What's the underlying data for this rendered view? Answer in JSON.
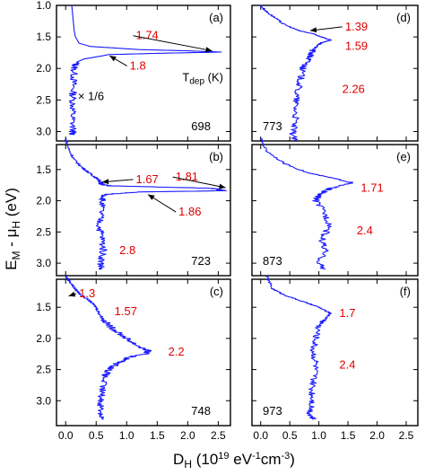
{
  "chart_data": {
    "type": "line",
    "xlabel": "D",
    "xlabel_sub": "H",
    "xlabel_units": " (10",
    "xlabel_exp1": "19",
    "xlabel_mid": " eV",
    "xlabel_exp2": "-1",
    "xlabel_mid2": "cm",
    "xlabel_exp3": "-3",
    "xlabel_end": ")",
    "ylabel_main": "E",
    "ylabel_sub1": "M",
    "ylabel_mid": " - μ",
    "ylabel_sub2": "H",
    "ylabel_units": " (eV)",
    "xlim": [
      -0.15,
      2.7
    ],
    "ylim": [
      1.0,
      3.4
    ],
    "ylim_inverted": true,
    "xticks": [
      "0.0",
      "0.5",
      "1.0",
      "1.5",
      "2.0",
      "2.5"
    ],
    "xtick_values": [
      0,
      0.5,
      1.0,
      1.5,
      2.0,
      2.5
    ],
    "yticks_top": [
      "1.0",
      "1.5",
      "2.0",
      "2.5",
      "3.0"
    ],
    "yticks_top_values": [
      1.0,
      1.5,
      2.0,
      2.5,
      3.0
    ],
    "yticks": [
      "1.5",
      "2.0",
      "2.5",
      "3.0"
    ],
    "yticks_values": [
      1.5,
      2.0,
      2.5,
      3.0
    ],
    "line_color": "#1a1aff",
    "annotation_color": "#e00000",
    "panels": [
      {
        "id": "a",
        "label": "(a)",
        "temp": "698",
        "temp_header": "T",
        "temp_header_sub": "dep",
        "temp_header_unit": " (K)",
        "scale_note": "× 1/6",
        "series": {
          "y": [
            1.0,
            1.1,
            1.2,
            1.3,
            1.4,
            1.5,
            1.6,
            1.65,
            1.7,
            1.72,
            1.74,
            1.76,
            1.78,
            1.8,
            1.85,
            1.9,
            2.0,
            2.2,
            2.4,
            2.6,
            2.8,
            3.0,
            3.05
          ],
          "x": [
            0.1,
            0.11,
            0.12,
            0.13,
            0.14,
            0.16,
            0.22,
            0.4,
            1.2,
            2.0,
            2.55,
            1.5,
            0.7,
            0.6,
            0.3,
            0.18,
            0.14,
            0.13,
            0.12,
            0.12,
            0.11,
            0.12,
            0.12
          ]
        },
        "annotations": [
          {
            "text": "1.74",
            "x": 1.15,
            "y": 1.48,
            "ax": 2.4,
            "ay": 1.72
          },
          {
            "text": "1.8",
            "x": 1.05,
            "y": 1.96,
            "ax": 0.72,
            "ay": 1.8
          }
        ]
      },
      {
        "id": "b",
        "label": "(b)",
        "temp": "723",
        "series": {
          "y": [
            1.0,
            1.2,
            1.35,
            1.45,
            1.55,
            1.62,
            1.67,
            1.72,
            1.76,
            1.8,
            1.84,
            1.86,
            1.9,
            2.0,
            2.2,
            2.4,
            2.6,
            2.8,
            3.0,
            3.1
          ],
          "x": [
            0.0,
            0.06,
            0.15,
            0.25,
            0.38,
            0.48,
            0.55,
            0.56,
            0.7,
            2.4,
            2.6,
            1.2,
            0.65,
            0.6,
            0.58,
            0.55,
            0.6,
            0.62,
            0.58,
            0.58
          ]
        },
        "annotations": [
          {
            "text": "1.67",
            "x": 1.15,
            "y": 1.66,
            "ax": 0.6,
            "ay": 1.7
          },
          {
            "text": "1.81",
            "x": 1.8,
            "y": 1.62,
            "ax": 2.62,
            "ay": 1.79
          },
          {
            "text": "1.86",
            "x": 1.85,
            "y": 2.18,
            "ax": 1.35,
            "ay": 1.9
          },
          {
            "text": "2.8",
            "x": 0.88,
            "y": 2.8
          }
        ]
      },
      {
        "id": "c",
        "label": "(c)",
        "temp": "748",
        "series": {
          "y": [
            1.0,
            1.1,
            1.2,
            1.3,
            1.4,
            1.5,
            1.6,
            1.7,
            1.8,
            1.9,
            2.0,
            2.1,
            2.2,
            2.25,
            2.3,
            2.4,
            2.5,
            2.6,
            2.8,
            3.0,
            3.2,
            3.3
          ],
          "x": [
            0.0,
            0.08,
            0.15,
            0.25,
            0.4,
            0.5,
            0.55,
            0.62,
            0.72,
            0.85,
            1.0,
            1.15,
            1.35,
            1.3,
            1.05,
            0.85,
            0.72,
            0.64,
            0.6,
            0.58,
            0.58,
            0.6
          ]
        },
        "annotations": [
          {
            "text": "1.3",
            "x": 0.22,
            "y": 1.28,
            "ax": 0.05,
            "ay": 1.32
          },
          {
            "text": "1.57",
            "x": 0.8,
            "y": 1.57
          },
          {
            "text": "2.2",
            "x": 1.68,
            "y": 2.22
          }
        ]
      },
      {
        "id": "d",
        "label": "(d)",
        "temp": "773",
        "series": {
          "y": [
            1.0,
            1.1,
            1.2,
            1.3,
            1.4,
            1.45,
            1.5,
            1.55,
            1.59,
            1.62,
            1.7,
            1.8,
            1.9,
            2.0,
            2.2,
            2.4,
            2.6,
            2.8,
            3.0,
            3.15
          ],
          "x": [
            0.0,
            0.1,
            0.25,
            0.4,
            0.65,
            0.9,
            1.05,
            1.2,
            1.05,
            1.0,
            0.9,
            0.85,
            0.8,
            0.72,
            0.68,
            0.62,
            0.6,
            0.6,
            0.55,
            0.58
          ]
        },
        "annotations": [
          {
            "text": "1.39",
            "x": 1.45,
            "y": 1.34,
            "ax": 0.85,
            "ay": 1.4
          },
          {
            "text": "1.59",
            "x": 1.45,
            "y": 1.65
          },
          {
            "text": "2.26",
            "x": 1.4,
            "y": 2.33
          }
        ]
      },
      {
        "id": "e",
        "label": "(e)",
        "temp": "873",
        "series": {
          "y": [
            1.0,
            1.2,
            1.4,
            1.55,
            1.65,
            1.71,
            1.8,
            1.9,
            2.0,
            2.2,
            2.4,
            2.6,
            2.8,
            3.0,
            3.1
          ],
          "x": [
            0.0,
            0.1,
            0.4,
            0.8,
            1.3,
            1.55,
            1.2,
            1.0,
            0.95,
            1.1,
            1.2,
            1.05,
            1.1,
            1.0,
            1.1
          ]
        },
        "annotations": [
          {
            "text": "1.71",
            "x": 1.72,
            "y": 1.8
          },
          {
            "text": "2.4",
            "x": 1.65,
            "y": 2.48
          }
        ]
      },
      {
        "id": "f",
        "label": "(f)",
        "temp": "973",
        "series": {
          "y": [
            1.0,
            1.2,
            1.3,
            1.4,
            1.5,
            1.6,
            1.7,
            1.8,
            2.0,
            2.2,
            2.4,
            2.6,
            2.8,
            3.0,
            3.2,
            3.3
          ],
          "x": [
            0.1,
            0.2,
            0.4,
            0.7,
            1.0,
            1.2,
            1.1,
            1.0,
            0.95,
            0.9,
            0.95,
            0.92,
            0.88,
            0.9,
            0.85,
            0.9
          ]
        },
        "annotations": [
          {
            "text": "1.7",
            "x": 1.35,
            "y": 1.6
          },
          {
            "text": "2.4",
            "x": 1.35,
            "y": 2.43
          }
        ]
      }
    ]
  }
}
